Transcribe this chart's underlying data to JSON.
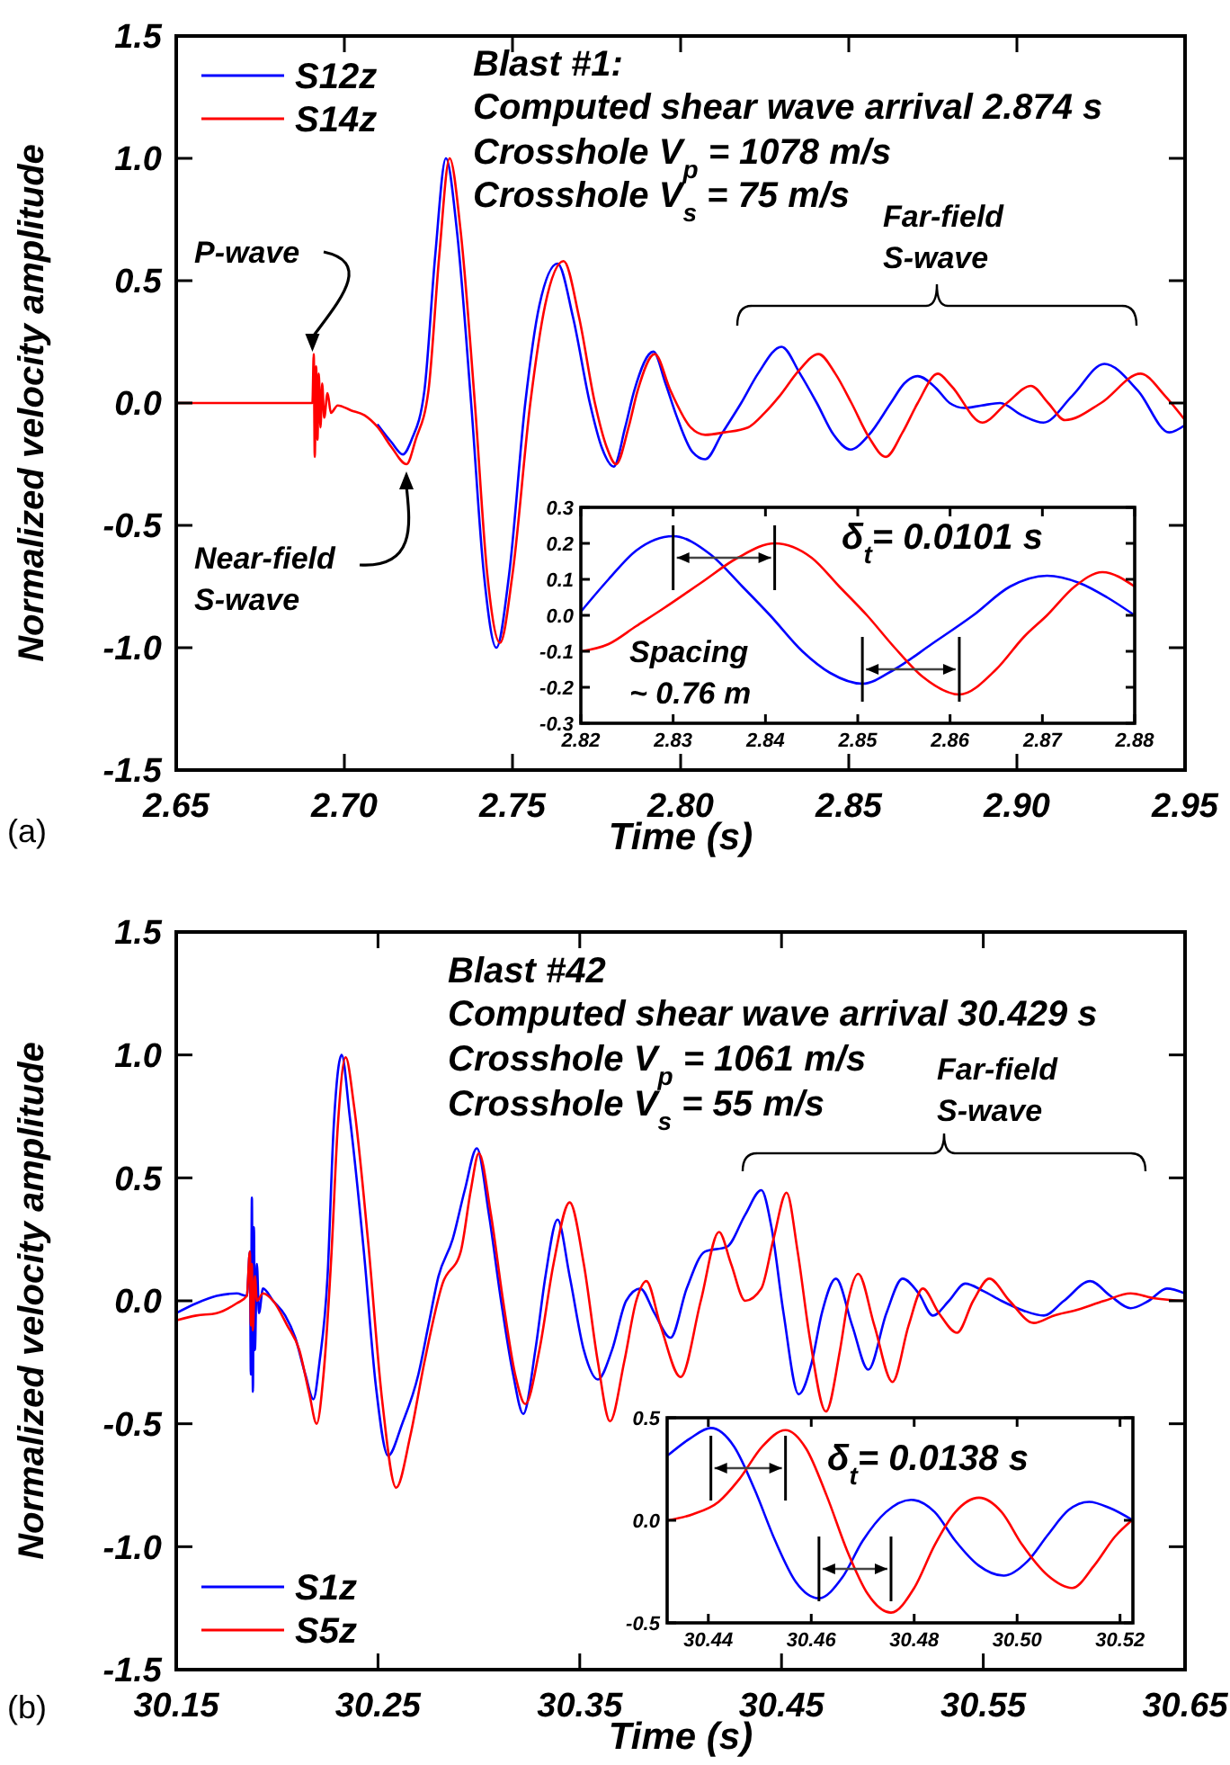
{
  "chart_data": [
    {
      "type": "line",
      "xlabel": "Time (s)",
      "ylabel": "Normalized velocity amplitude",
      "legend": "top left",
      "xlim": [
        2.65,
        2.95
      ],
      "ylim": [
        -1.5,
        1.5
      ],
      "xticks": [
        2.65,
        {
          "value": 2.7,
          "label": "2.70"
        },
        2.75,
        {
          "value": 2.8,
          "label": "2.80"
        },
        2.85,
        {
          "value": 2.9,
          "label": "2.90"
        },
        2.95
      ],
      "yticks": [
        -1.5,
        {
          "value": -1,
          "label": "-1.0"
        },
        -0.5,
        {
          "value": 0,
          "label": "0.0"
        },
        0.5,
        {
          "value": 1,
          "label": "1.0"
        },
        1.5
      ],
      "series": [
        {
          "name": "S12z",
          "color": "#0000ff",
          "x": [
            2.71,
            2.714,
            2.7174,
            2.72,
            2.7238,
            2.727,
            2.7302,
            2.7335,
            2.7377,
            2.7415,
            2.7452,
            2.749,
            2.7538,
            2.758,
            2.7634,
            2.768,
            2.773,
            2.7765,
            2.7801,
            2.7835,
            2.7862,
            2.7919,
            2.7955,
            2.7987,
            2.8035,
            2.8073,
            2.8125,
            2.818,
            2.823,
            2.83,
            2.8355,
            2.8405,
            2.8455,
            2.8505,
            2.856,
            2.8625,
            2.8665,
            2.8705,
            2.876,
            2.88,
            2.8843,
            2.8895,
            2.895,
            2.9015,
            2.9079,
            2.9165,
            2.926,
            2.936,
            2.9453,
            2.95
          ],
          "values": [
            -0.09,
            -0.16,
            -0.21,
            -0.15,
            0.05,
            0.6,
            1.0,
            0.7,
            0,
            -0.7,
            -1.0,
            -0.7,
            0,
            0.4,
            0.57,
            0.35,
            0,
            -0.18,
            -0.26,
            -0.1,
            0.05,
            0.21,
            0.08,
            -0.05,
            -0.2,
            -0.23,
            -0.12,
            0,
            0.12,
            0.23,
            0.12,
            0,
            -0.13,
            -0.19,
            -0.13,
            0,
            0.08,
            0.11,
            0.06,
            0,
            -0.02,
            -0.01,
            0,
            -0.05,
            -0.08,
            0.03,
            0.16,
            0.05,
            -0.12,
            -0.09
          ]
        },
        {
          "name": "S14z",
          "color": "#ff0000",
          "x": [
            2.65,
            2.69,
            2.6905,
            2.6909,
            2.6912,
            2.6916,
            2.692,
            2.6924,
            2.6929,
            2.6934,
            2.694,
            2.695,
            2.696,
            2.698,
            2.702,
            2.706,
            2.71,
            2.714,
            2.7185,
            2.7212,
            2.725,
            2.7282,
            2.7313,
            2.7346,
            2.7388,
            2.7425,
            2.7463,
            2.75,
            2.7553,
            2.7597,
            2.7652,
            2.7698,
            2.7745,
            2.778,
            2.7808,
            2.7845,
            2.7872,
            2.7923,
            2.797,
            2.803,
            2.8073,
            2.813,
            2.82,
            2.825,
            2.8295,
            2.835,
            2.841,
            2.846,
            2.8508,
            2.856,
            2.861,
            2.866,
            2.8705,
            2.8765,
            2.8805,
            2.8897,
            2.897,
            2.9042,
            2.9093,
            2.9143,
            2.925,
            2.9368,
            2.944,
            2.95
          ],
          "values": [
            0,
            0,
            0,
            0.2,
            -0.22,
            0.15,
            -0.15,
            0.12,
            -0.1,
            0.08,
            -0.06,
            0.04,
            -0.04,
            -0.01,
            -0.03,
            -0.05,
            -0.1,
            -0.18,
            -0.25,
            -0.15,
            0.05,
            0.6,
            1.0,
            0.7,
            0,
            -0.7,
            -0.98,
            -0.7,
            0,
            0.4,
            0.58,
            0.35,
            0,
            -0.18,
            -0.25,
            -0.1,
            0.05,
            0.2,
            0.05,
            -0.1,
            -0.13,
            -0.12,
            -0.1,
            -0.04,
            0.03,
            0.13,
            0.2,
            0.12,
            0,
            -0.14,
            -0.22,
            -0.12,
            0,
            0.12,
            0.07,
            -0.08,
            0,
            0.07,
            0,
            -0.07,
            0,
            0.12,
            0.03,
            -0.07
          ]
        }
      ],
      "annotations": [
        "Blast #1:",
        "Computed shear wave arrival 2.874 s",
        "Crosshole V$_{p}$ = 1078 m/s",
        "Crosshole V$_{s}$ = 75 m/s",
        {
          "text": "P-wave",
          "x": 2.6905,
          "y": 0.18
        },
        "Near-field S-wave",
        "Far-field S-wave",
        "(a)"
      ]
    },
    {
      "type": "line",
      "xlim": [
        2.82,
        2.88
      ],
      "ylim": [
        -0.3,
        0.3
      ],
      "xticks": [
        2.82,
        2.83,
        2.84,
        2.85,
        2.86,
        2.87,
        2.88
      ],
      "yticks": [
        -0.3,
        -0.2,
        -0.1,
        {
          "value": 0,
          "label": "0.0"
        },
        0.1,
        0.2,
        0.3
      ],
      "series": [
        {
          "color": "#0000ff",
          "x": [
            2.82,
            2.823,
            2.826,
            2.83,
            2.834,
            2.8375,
            2.8405,
            2.844,
            2.847,
            2.8505,
            2.854,
            2.858,
            2.8625,
            2.8665,
            2.8705,
            2.874,
            2.877,
            2.88
          ],
          "values": [
            0.01,
            0.1,
            0.18,
            0.22,
            0.17,
            0.08,
            0,
            -0.1,
            -0.16,
            -0.19,
            -0.15,
            -0.08,
            0,
            0.08,
            0.11,
            0.09,
            0.05,
            0
          ]
        },
        {
          "color": "#ff0000",
          "x": [
            2.82,
            2.823,
            2.826,
            2.829,
            2.833,
            2.837,
            2.841,
            2.845,
            2.848,
            2.851,
            2.854,
            2.857,
            2.861,
            2.865,
            2.868,
            2.8705,
            2.8735,
            2.8765,
            2.88
          ],
          "values": [
            -0.1,
            -0.08,
            -0.03,
            0.02,
            0.09,
            0.16,
            0.2,
            0.16,
            0.08,
            0,
            -0.09,
            -0.17,
            -0.22,
            -0.15,
            -0.06,
            0,
            0.08,
            0.12,
            0.08
          ]
        }
      ],
      "annotations": [
        "δ$_{t}$= 0.0101 s",
        "Spacing ~ 0.76 m"
      ]
    },
    {
      "type": "line",
      "xlabel": "Time (s)",
      "ylabel": "Normalized velocity amplitude",
      "legend": "bottom left",
      "xlim": [
        30.15,
        30.65
      ],
      "ylim": [
        -1.5,
        1.5
      ],
      "xticks": [
        30.15,
        30.25,
        30.35,
        30.45,
        30.55,
        30.65
      ],
      "yticks": [
        -1.5,
        {
          "value": -1,
          "label": "-1.0"
        },
        -0.5,
        {
          "value": 0,
          "label": "0.0"
        },
        0.5,
        {
          "value": 1,
          "label": "1.0"
        },
        1.5
      ],
      "series": [
        {
          "name": "S1z",
          "color": "#0000ff",
          "x": [
            30.15,
            30.16,
            30.17,
            30.18,
            30.185,
            30.1865,
            30.187,
            30.1875,
            30.188,
            30.1885,
            30.189,
            30.19,
            30.191,
            30.193,
            30.198,
            30.204,
            30.209,
            30.214,
            30.218,
            30.221,
            30.225,
            30.228,
            30.232,
            30.236,
            30.243,
            30.249,
            30.255,
            30.262,
            30.27,
            30.275,
            30.28,
            30.287,
            30.293,
            30.299,
            30.305,
            30.311,
            30.317,
            30.322,
            30.328,
            30.333,
            30.339,
            30.345,
            30.352,
            30.359,
            30.366,
            30.373,
            30.38,
            30.387,
            30.395,
            30.403,
            30.412,
            30.423,
            30.432,
            30.44,
            30.445,
            30.451,
            30.4585,
            30.465,
            30.47,
            30.477,
            30.485,
            30.493,
            30.502,
            30.51,
            30.518,
            30.525,
            30.533,
            30.541,
            30.55,
            30.559,
            30.57,
            30.58,
            30.59,
            30.603,
            30.613,
            30.623,
            30.632,
            30.641,
            30.65
          ],
          "values": [
            -0.05,
            -0.01,
            0.02,
            0.03,
            0.02,
            0.2,
            -0.3,
            0.42,
            -0.37,
            0.3,
            -0.2,
            0.15,
            -0.05,
            0.05,
            0,
            -0.06,
            -0.15,
            -0.3,
            -0.4,
            -0.25,
            0.1,
            0.7,
            1.0,
            0.75,
            0.2,
            -0.35,
            -0.63,
            -0.5,
            -0.3,
            -0.1,
            0.1,
            0.25,
            0.45,
            0.62,
            0.35,
            0,
            -0.3,
            -0.46,
            -0.2,
            0.1,
            0.33,
            0.1,
            -0.2,
            -0.32,
            -0.2,
            0,
            0.05,
            -0.05,
            -0.15,
            0.05,
            0.2,
            0.22,
            0.35,
            0.45,
            0.3,
            -0.05,
            -0.38,
            -0.25,
            -0.05,
            0.09,
            -0.1,
            -0.28,
            -0.05,
            0.09,
            0.03,
            -0.06,
            0,
            0.07,
            0.04,
            0,
            -0.04,
            -0.06,
            0,
            0.08,
            0.02,
            -0.03,
            0,
            0.05,
            0.03
          ]
        },
        {
          "name": "S5z",
          "color": "#ff0000",
          "x": [
            30.15,
            30.16,
            30.17,
            30.18,
            30.185,
            30.1865,
            30.187,
            30.1875,
            30.188,
            30.189,
            30.19,
            30.193,
            30.198,
            30.205,
            30.211,
            30.216,
            30.2196,
            30.223,
            30.227,
            30.23,
            30.234,
            30.238,
            30.245,
            30.252,
            30.259,
            30.266,
            30.273,
            30.282,
            30.291,
            30.296,
            30.3,
            30.306,
            30.312,
            30.318,
            30.323,
            30.33,
            30.337,
            30.345,
            30.352,
            30.359,
            30.365,
            30.372,
            30.378,
            30.383,
            30.39,
            30.4,
            30.41,
            30.419,
            30.425,
            30.432,
            30.44,
            30.446,
            30.4525,
            30.458,
            30.464,
            30.472,
            30.479,
            30.483,
            30.488,
            30.496,
            30.505,
            30.513,
            30.52,
            30.528,
            30.537,
            30.545,
            30.553,
            30.563,
            30.575,
            30.585,
            30.595,
            30.61,
            30.623,
            30.635,
            30.65
          ],
          "values": [
            -0.08,
            -0.06,
            -0.05,
            -0.01,
            0.02,
            0.2,
            -0.1,
            0.15,
            -0.12,
            0.1,
            0,
            0.03,
            0,
            -0.1,
            -0.2,
            -0.38,
            -0.5,
            -0.3,
            0.2,
            0.7,
            0.99,
            0.8,
            0.25,
            -0.4,
            -0.76,
            -0.55,
            -0.25,
            0.07,
            0.2,
            0.45,
            0.6,
            0.35,
            0,
            -0.3,
            -0.42,
            -0.2,
            0.15,
            0.4,
            0.15,
            -0.25,
            -0.49,
            -0.25,
            0,
            0.08,
            -0.1,
            -0.31,
            0,
            0.28,
            0.15,
            0,
            0.05,
            0.25,
            0.44,
            0.2,
            -0.15,
            -0.45,
            -0.2,
            0,
            0.11,
            -0.1,
            -0.33,
            -0.1,
            0.05,
            -0.05,
            -0.13,
            0,
            0.09,
            0,
            -0.09,
            -0.06,
            -0.04,
            0,
            0.03,
            0.01,
            0
          ]
        }
      ],
      "annotations": [
        "Blast #42",
        "Computed shear wave arrival 30.429 s",
        "Crosshole V$_{p}$ = 1061 m/s",
        "Crosshole V$_{s}$ = 55 m/s",
        "Far-field S-wave",
        "(b)"
      ]
    },
    {
      "type": "line",
      "xlim": [
        30.432,
        30.5225
      ],
      "ylim": [
        -0.5,
        0.5
      ],
      "xticks": [
        30.44,
        30.46,
        30.48,
        {
          "value": 30.5,
          "label": "30.50"
        },
        30.52
      ],
      "yticks": [
        -0.5,
        {
          "value": 0,
          "label": "0.0"
        },
        0.5
      ],
      "series": [
        {
          "color": "#0000ff",
          "x": [
            30.4323,
            30.4365,
            30.4405,
            30.445,
            30.449,
            30.453,
            30.457,
            30.4615,
            30.466,
            30.47,
            30.4745,
            30.4794,
            30.484,
            30.488,
            30.4925,
            30.4974,
            30.502,
            30.506,
            30.51,
            30.514,
            30.518,
            30.5225
          ],
          "values": [
            0.32,
            0.4,
            0.45,
            0.36,
            0.15,
            -0.1,
            -0.3,
            -0.38,
            -0.28,
            -0.1,
            0.04,
            0.1,
            0.04,
            -0.1,
            -0.22,
            -0.27,
            -0.2,
            -0.07,
            0.05,
            0.09,
            0.06,
            0
          ]
        },
        {
          "color": "#ff0000",
          "x": [
            30.4323,
            30.437,
            30.442,
            30.446,
            30.4505,
            30.455,
            30.459,
            30.463,
            30.467,
            30.471,
            30.4755,
            30.48,
            30.484,
            30.488,
            30.4926,
            30.497,
            30.501,
            30.506,
            30.5107,
            30.515,
            30.519,
            30.5223
          ],
          "values": [
            0,
            0.03,
            0.09,
            0.2,
            0.36,
            0.44,
            0.35,
            0.12,
            -0.15,
            -0.36,
            -0.45,
            -0.33,
            -0.12,
            0.04,
            0.11,
            0.04,
            -0.12,
            -0.27,
            -0.33,
            -0.22,
            -0.08,
            0
          ]
        }
      ],
      "annotations": [
        "δ$_{t}$= 0.0138 s"
      ]
    }
  ]
}
